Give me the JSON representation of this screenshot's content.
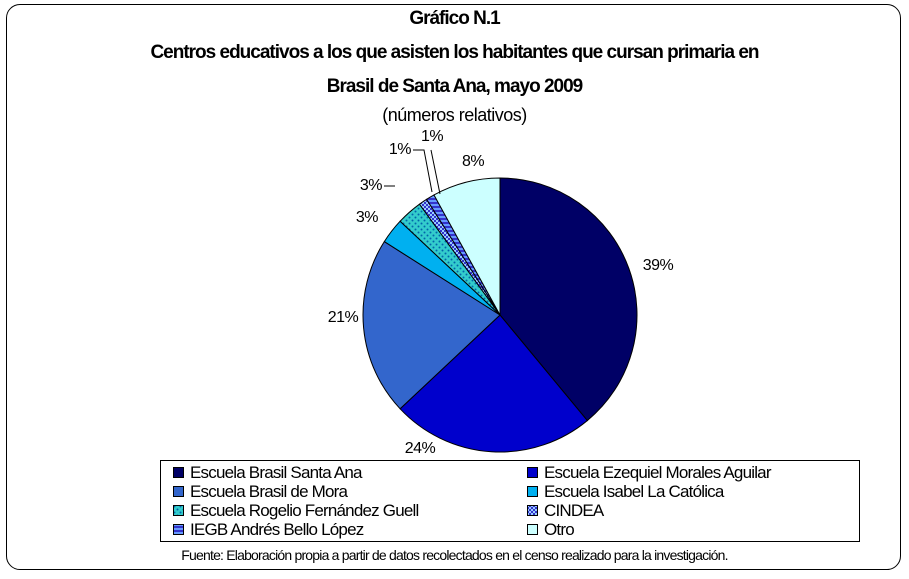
{
  "chart_data": {
    "type": "pie",
    "title_lines": [
      "Gráfico N.1",
      "Centros educativos a los que asisten los habitantes que cursan primaria en",
      "Brasil de Santa Ana, mayo 2009"
    ],
    "subtitle": "(números relativos)",
    "categories": [
      "Escuela Brasil Santa Ana",
      "Escuela Ezequiel Morales Aguilar",
      "Escuela Brasil de Mora",
      "Escuela Isabel La Católica",
      "Escuela Rogelio Fernández Guell",
      "CINDEA",
      "IEGB Andrés Bello López",
      "Otro"
    ],
    "values": [
      39,
      24,
      21,
      3,
      3,
      1,
      1,
      8
    ],
    "data_labels": [
      "39%",
      "24%",
      "21%",
      "3%",
      "3%",
      "1%",
      "1%",
      "8%"
    ],
    "colors": [
      "#000066",
      "#0000CC",
      "#3366CC",
      "#00B0F0",
      "#33CCCC",
      "#3333CC",
      "#3333CC",
      "#CCFFFF"
    ],
    "patterns": [
      "solid",
      "solid",
      "solid",
      "solid",
      "dotted",
      "checker",
      "horizontal-stripes",
      "solid"
    ],
    "legend_position": "bottom",
    "legend_columns": 2,
    "source": "Fuente: Elaboración propia a partir de datos recolectados en el censo realizado para la investigación."
  }
}
